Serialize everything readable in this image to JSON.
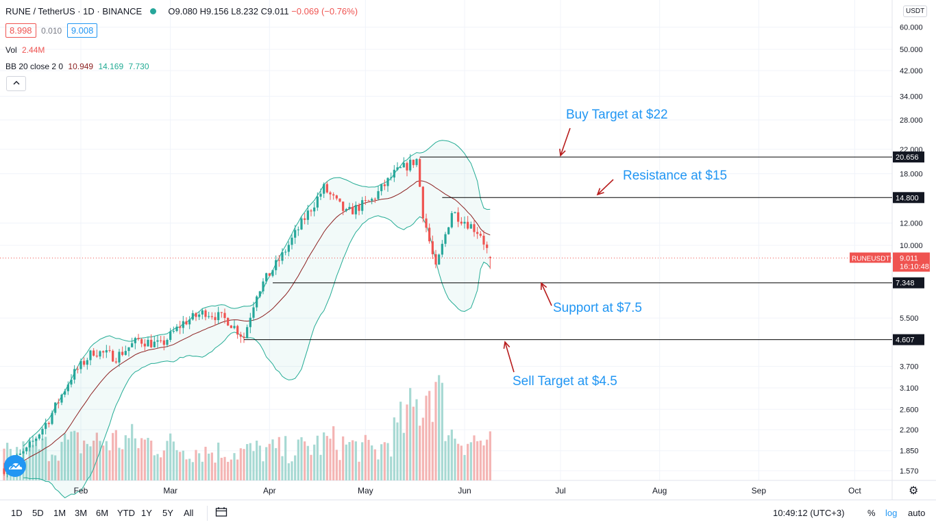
{
  "header": {
    "symbol": "RUNE / TetherUS · 1D · BINANCE",
    "open": "O9.080",
    "high": "H9.156",
    "low": "L8.232",
    "close": "C9.011",
    "change": "−0.069 (−0.76%)",
    "sell_price": "8.998",
    "spread": "0.010",
    "buy_price": "9.008",
    "vol_label": "Vol",
    "vol_value": "2.44M",
    "bb_label": "BB 20 close 2 0",
    "bb_basis": "10.949",
    "bb_upper": "14.169",
    "bb_lower": "7.730",
    "collapse_icon": "chevron-up-icon"
  },
  "currency_badge": "USDT",
  "toolbar": {
    "ranges": [
      "1D",
      "5D",
      "1M",
      "3M",
      "6M",
      "YTD",
      "1Y",
      "5Y",
      "All"
    ],
    "compare_icon": "calendar-range-icon",
    "time": "10:49:12 (UTC+3)",
    "percent": "%",
    "log": "log",
    "auto": "auto"
  },
  "colors": {
    "up": "#26a69a",
    "down": "#ef5350",
    "bb_band": "#22ab94",
    "bb_basis": "#8b1f1f",
    "annotation": "#2196f3",
    "arrow": "#b71c1c",
    "level_line": "#000000"
  },
  "chart_data": {
    "type": "candlestick",
    "scale": "log",
    "ylim": [
      1.45,
      75
    ],
    "x_ticks": [
      "Feb",
      "Mar",
      "Apr",
      "May",
      "Jun",
      "Jul",
      "Aug",
      "Sep",
      "Oct"
    ],
    "x_tick_dates": [
      "2021-02-01",
      "2021-03-01",
      "2021-04-01",
      "2021-05-01",
      "2021-06-01",
      "2021-07-01",
      "2021-08-01",
      "2021-09-01",
      "2021-10-01"
    ],
    "y_ticks": [
      60.0,
      50.0,
      42.0,
      34.0,
      28.0,
      22.0,
      18.0,
      12.0,
      10.0,
      5.5,
      3.7,
      3.1,
      2.6,
      2.2,
      1.85,
      1.57
    ],
    "y_tick_labels": [
      "60.000",
      "50.000",
      "42.000",
      "34.000",
      "28.000",
      "22.000",
      "18.000",
      "12.000",
      "10.000",
      "5.500",
      "3.700",
      "3.100",
      "2.600",
      "2.200",
      "1.850",
      "1.570"
    ],
    "last_price": {
      "symbol": "RUNEUSDT",
      "value": "9.011",
      "countdown": "16:10:48"
    },
    "levels": [
      {
        "value": 20.656,
        "label": "20.656",
        "from_date": "2021-05-18"
      },
      {
        "value": 14.8,
        "label": "14.800",
        "from_date": "2021-05-25"
      },
      {
        "value": 7.348,
        "label": "7.348",
        "from_date": "2021-04-02"
      },
      {
        "value": 4.607,
        "label": "4.607",
        "from_date": "2021-03-24"
      }
    ],
    "annotations": [
      {
        "text": "Buy Target at $22"
      },
      {
        "text": "Resistance at $15"
      },
      {
        "text": "Support at $7.5"
      },
      {
        "text": "Sell Target at $4.5"
      }
    ],
    "anchors": [
      [
        "2021-01-08",
        1.6
      ],
      [
        "2021-01-15",
        1.85
      ],
      [
        "2021-01-22",
        2.4
      ],
      [
        "2021-01-29",
        3.4
      ],
      [
        "2021-02-05",
        4.2
      ],
      [
        "2021-02-12",
        4.0
      ],
      [
        "2021-02-19",
        4.6
      ],
      [
        "2021-02-26",
        4.4
      ],
      [
        "2021-03-05",
        5.3
      ],
      [
        "2021-03-12",
        5.8
      ],
      [
        "2021-03-19",
        5.4
      ],
      [
        "2021-03-24",
        4.7
      ],
      [
        "2021-03-28",
        6.8
      ],
      [
        "2021-04-05",
        9.2
      ],
      [
        "2021-04-12",
        12.5
      ],
      [
        "2021-04-18",
        16.0
      ],
      [
        "2021-04-25",
        13.0
      ],
      [
        "2021-05-03",
        14.5
      ],
      [
        "2021-05-10",
        18.0
      ],
      [
        "2021-05-17",
        20.2
      ],
      [
        "2021-05-19",
        13.0
      ],
      [
        "2021-05-23",
        8.2
      ],
      [
        "2021-05-28",
        13.2
      ],
      [
        "2021-06-02",
        12.0
      ],
      [
        "2021-06-06",
        11.0
      ],
      [
        "2021-06-09",
        9.011
      ]
    ],
    "volume_profile": [
      [
        "2021-01-08",
        0.25
      ],
      [
        "2021-01-25",
        0.35
      ],
      [
        "2021-02-15",
        0.4
      ],
      [
        "2021-03-15",
        0.28
      ],
      [
        "2021-04-10",
        0.3
      ],
      [
        "2021-04-20",
        0.38
      ],
      [
        "2021-05-05",
        0.28
      ],
      [
        "2021-05-18",
        0.75
      ],
      [
        "2021-05-22",
        1.0
      ],
      [
        "2021-05-28",
        0.45
      ],
      [
        "2021-06-09",
        0.35
      ]
    ]
  }
}
